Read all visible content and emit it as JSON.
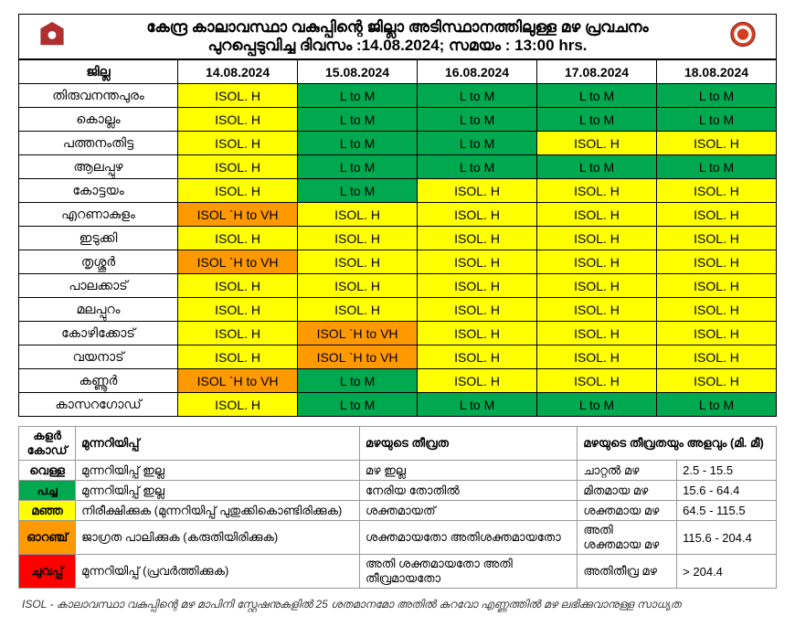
{
  "header": {
    "title_line1": "കേന്ദ്ര കാലാവസ്ഥാ വകുപ്പിന്റെ ജില്ലാ അടിസ്ഥാനത്തിലുള്ള മഴ പ്രവചനം",
    "title_line2": "പുറപ്പെടുവിച്ച ദിവസം :14.08.2024; സമയം : 13:00 hrs."
  },
  "columns": {
    "district": "ജില്ല",
    "d0": "14.08.2024",
    "d1": "15.08.2024",
    "d2": "16.08.2024",
    "d3": "17.08.2024",
    "d4": "18.08.2024"
  },
  "labels": {
    "LtoM": "L to M",
    "ISOLH": "ISOL. H",
    "ISOLHVH": "ISOL `H to VH"
  },
  "rows": [
    {
      "name": "തിരുവനന്തപുരം",
      "c": [
        "ISOLH",
        "LtoM",
        "LtoM",
        "LtoM",
        "LtoM"
      ],
      "col": [
        "y",
        "g",
        "g",
        "g",
        "g"
      ]
    },
    {
      "name": "കൊല്ലം",
      "c": [
        "ISOLH",
        "LtoM",
        "LtoM",
        "LtoM",
        "LtoM"
      ],
      "col": [
        "y",
        "g",
        "g",
        "g",
        "g"
      ]
    },
    {
      "name": "പത്തനംതിട്ട",
      "c": [
        "ISOLH",
        "LtoM",
        "LtoM",
        "ISOLH",
        "ISOLH"
      ],
      "col": [
        "y",
        "g",
        "g",
        "y",
        "y"
      ]
    },
    {
      "name": "ആലപ്പുഴ",
      "c": [
        "ISOLH",
        "LtoM",
        "LtoM",
        "LtoM",
        "LtoM"
      ],
      "col": [
        "y",
        "g",
        "g",
        "g",
        "g"
      ]
    },
    {
      "name": "കോട്ടയം",
      "c": [
        "ISOLH",
        "LtoM",
        "ISOLH",
        "ISOLH",
        "ISOLH"
      ],
      "col": [
        "y",
        "g",
        "y",
        "y",
        "y"
      ]
    },
    {
      "name": "എറണാകുളം",
      "c": [
        "ISOLHVH",
        "ISOLH",
        "ISOLH",
        "ISOLH",
        "ISOLH"
      ],
      "col": [
        "o",
        "y",
        "y",
        "y",
        "y"
      ]
    },
    {
      "name": "ഇടുക്കി",
      "c": [
        "ISOLH",
        "ISOLH",
        "ISOLH",
        "ISOLH",
        "ISOLH"
      ],
      "col": [
        "y",
        "y",
        "y",
        "y",
        "y"
      ]
    },
    {
      "name": "തൃശ്ശൂർ",
      "c": [
        "ISOLHVH",
        "ISOLH",
        "ISOLH",
        "ISOLH",
        "ISOLH"
      ],
      "col": [
        "o",
        "y",
        "y",
        "y",
        "y"
      ]
    },
    {
      "name": "പാലക്കാട്",
      "c": [
        "ISOLH",
        "ISOLH",
        "ISOLH",
        "ISOLH",
        "ISOLH"
      ],
      "col": [
        "y",
        "y",
        "y",
        "y",
        "y"
      ]
    },
    {
      "name": "മലപ്പുറം",
      "c": [
        "ISOLH",
        "ISOLH",
        "ISOLH",
        "ISOLH",
        "ISOLH"
      ],
      "col": [
        "y",
        "y",
        "y",
        "y",
        "y"
      ]
    },
    {
      "name": "കോഴിക്കോട്",
      "c": [
        "ISOLH",
        "ISOLHVH",
        "ISOLH",
        "ISOLH",
        "ISOLH"
      ],
      "col": [
        "y",
        "o",
        "y",
        "y",
        "y"
      ]
    },
    {
      "name": "വയനാട്",
      "c": [
        "ISOLH",
        "ISOLHVH",
        "ISOLH",
        "ISOLH",
        "ISOLH"
      ],
      "col": [
        "y",
        "o",
        "y",
        "y",
        "y"
      ]
    },
    {
      "name": "കണ്ണൂർ",
      "c": [
        "ISOLHVH",
        "LtoM",
        "ISOLH",
        "ISOLH",
        "ISOLH"
      ],
      "col": [
        "o",
        "g",
        "y",
        "y",
        "y"
      ]
    },
    {
      "name": "കാസറഗോഡ്",
      "c": [
        "ISOLH",
        "LtoM",
        "LtoM",
        "LtoM",
        "LtoM"
      ],
      "col": [
        "y",
        "g",
        "g",
        "g",
        "g"
      ]
    }
  ],
  "legend": {
    "headers": {
      "code": "കളർ കോഡ്",
      "warning": "മുന്നറിയിപ്പ്",
      "severity": "മഴയുടെ തീവ്രത",
      "intensity": "മഴയുടെ തീവ്രതയും അളവും (മി. മീ)"
    },
    "rows": [
      {
        "color": "വെള്ള",
        "cls": "w",
        "warn": "മുന്നറിയിപ്പ് ഇല്ല",
        "sev": "മഴ ഇല്ല",
        "int_l": "ചാറ്റൽ മഴ",
        "int_r": "2.5 - 15.5"
      },
      {
        "color": "പച്ച",
        "cls": "g",
        "warn": "മുന്നറിയിപ്പ് ഇല്ല",
        "sev": "നേരിയ തോതിൽ",
        "int_l": "മിതമായ മഴ",
        "int_r": "15.6 - 64.4"
      },
      {
        "color": "മഞ്ഞ",
        "cls": "y",
        "warn": "നിരീക്ഷിക്കുക (മുന്നറിയിപ്പ് പുതുക്കികൊണ്ടിരിക്കുക)",
        "sev": "ശക്തമായത്",
        "int_l": "ശക്തമായ മഴ",
        "int_r": "64.5 - 115.5"
      },
      {
        "color": "ഓറഞ്ച്",
        "cls": "o",
        "warn": "ജാഗ്രത പാലിക്കുക (കരുതിയിരിക്കുക)",
        "sev": "ശക്തമായതോ അതിശക്തമായതോ",
        "int_l": "അതി ശക്തമായ മഴ",
        "int_r": "115.6 - 204.4"
      },
      {
        "color": "ചുവപ്പ്",
        "cls": "r",
        "warn": "മുന്നറിയിപ്പ് (പ്രവർത്തിക്കുക)",
        "sev": "അതി ശക്തമായതോ അതി തീവ്രമായതോ",
        "int_l": "അതിതീവ്ര മഴ",
        "int_r": "> 204.4"
      }
    ]
  },
  "footnote": "ISOL - കാലാവസ്ഥാ   വകുപ്പിന്റെ   മഴ  മാപിനി  സ്റ്റേഷനുകളിൽ   25  ശതമാനമോ   അതിൽ  കുറവോ   എണ്ണത്തിൽ   മഴ   ലഭിക്കുവാനുള്ള   സാധ്യത"
}
